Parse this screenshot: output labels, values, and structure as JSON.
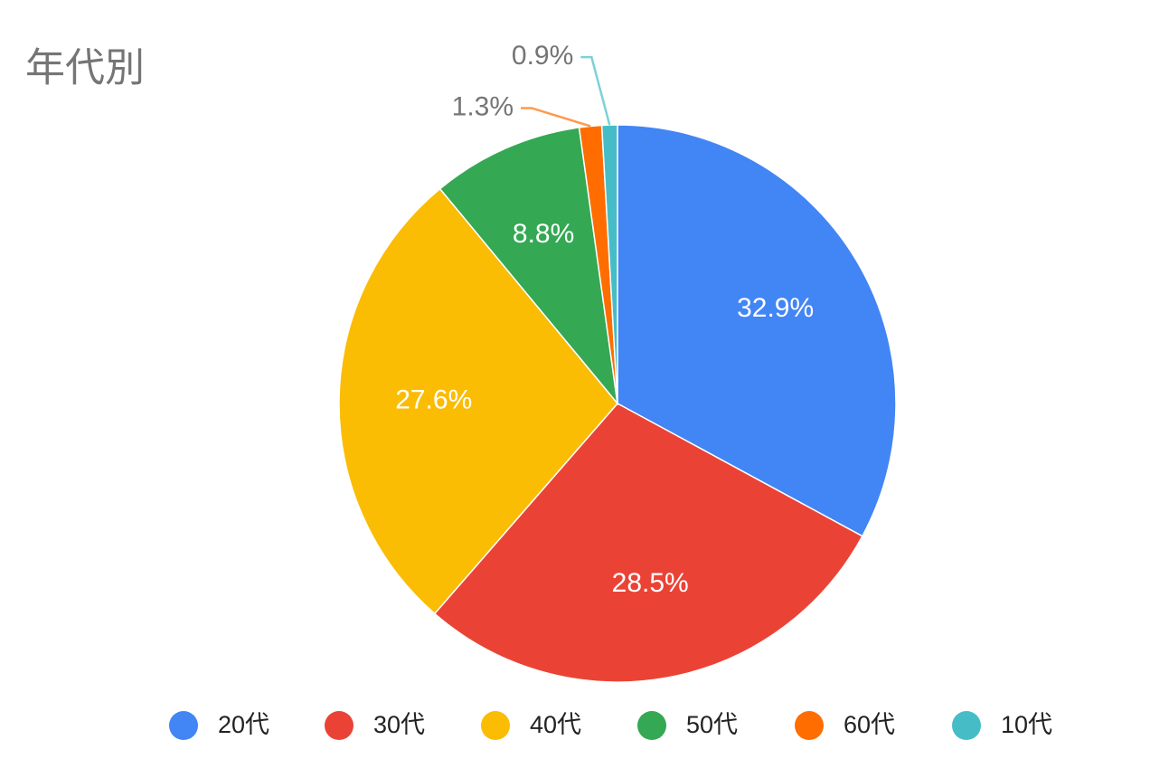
{
  "chart_data": {
    "type": "pie",
    "title": "年代別",
    "categories": [
      "20代",
      "30代",
      "40代",
      "50代",
      "60代",
      "10代"
    ],
    "values": [
      32.9,
      28.5,
      27.6,
      8.8,
      1.3,
      0.9
    ],
    "value_labels": [
      "32.9%",
      "28.5%",
      "27.6%",
      "8.8%",
      "1.3%",
      "0.9%"
    ],
    "colors": [
      "#4285f4",
      "#ea4335",
      "#fbbc04",
      "#34a853",
      "#ff6d01",
      "#46bdc6"
    ],
    "legend": "bottom"
  }
}
